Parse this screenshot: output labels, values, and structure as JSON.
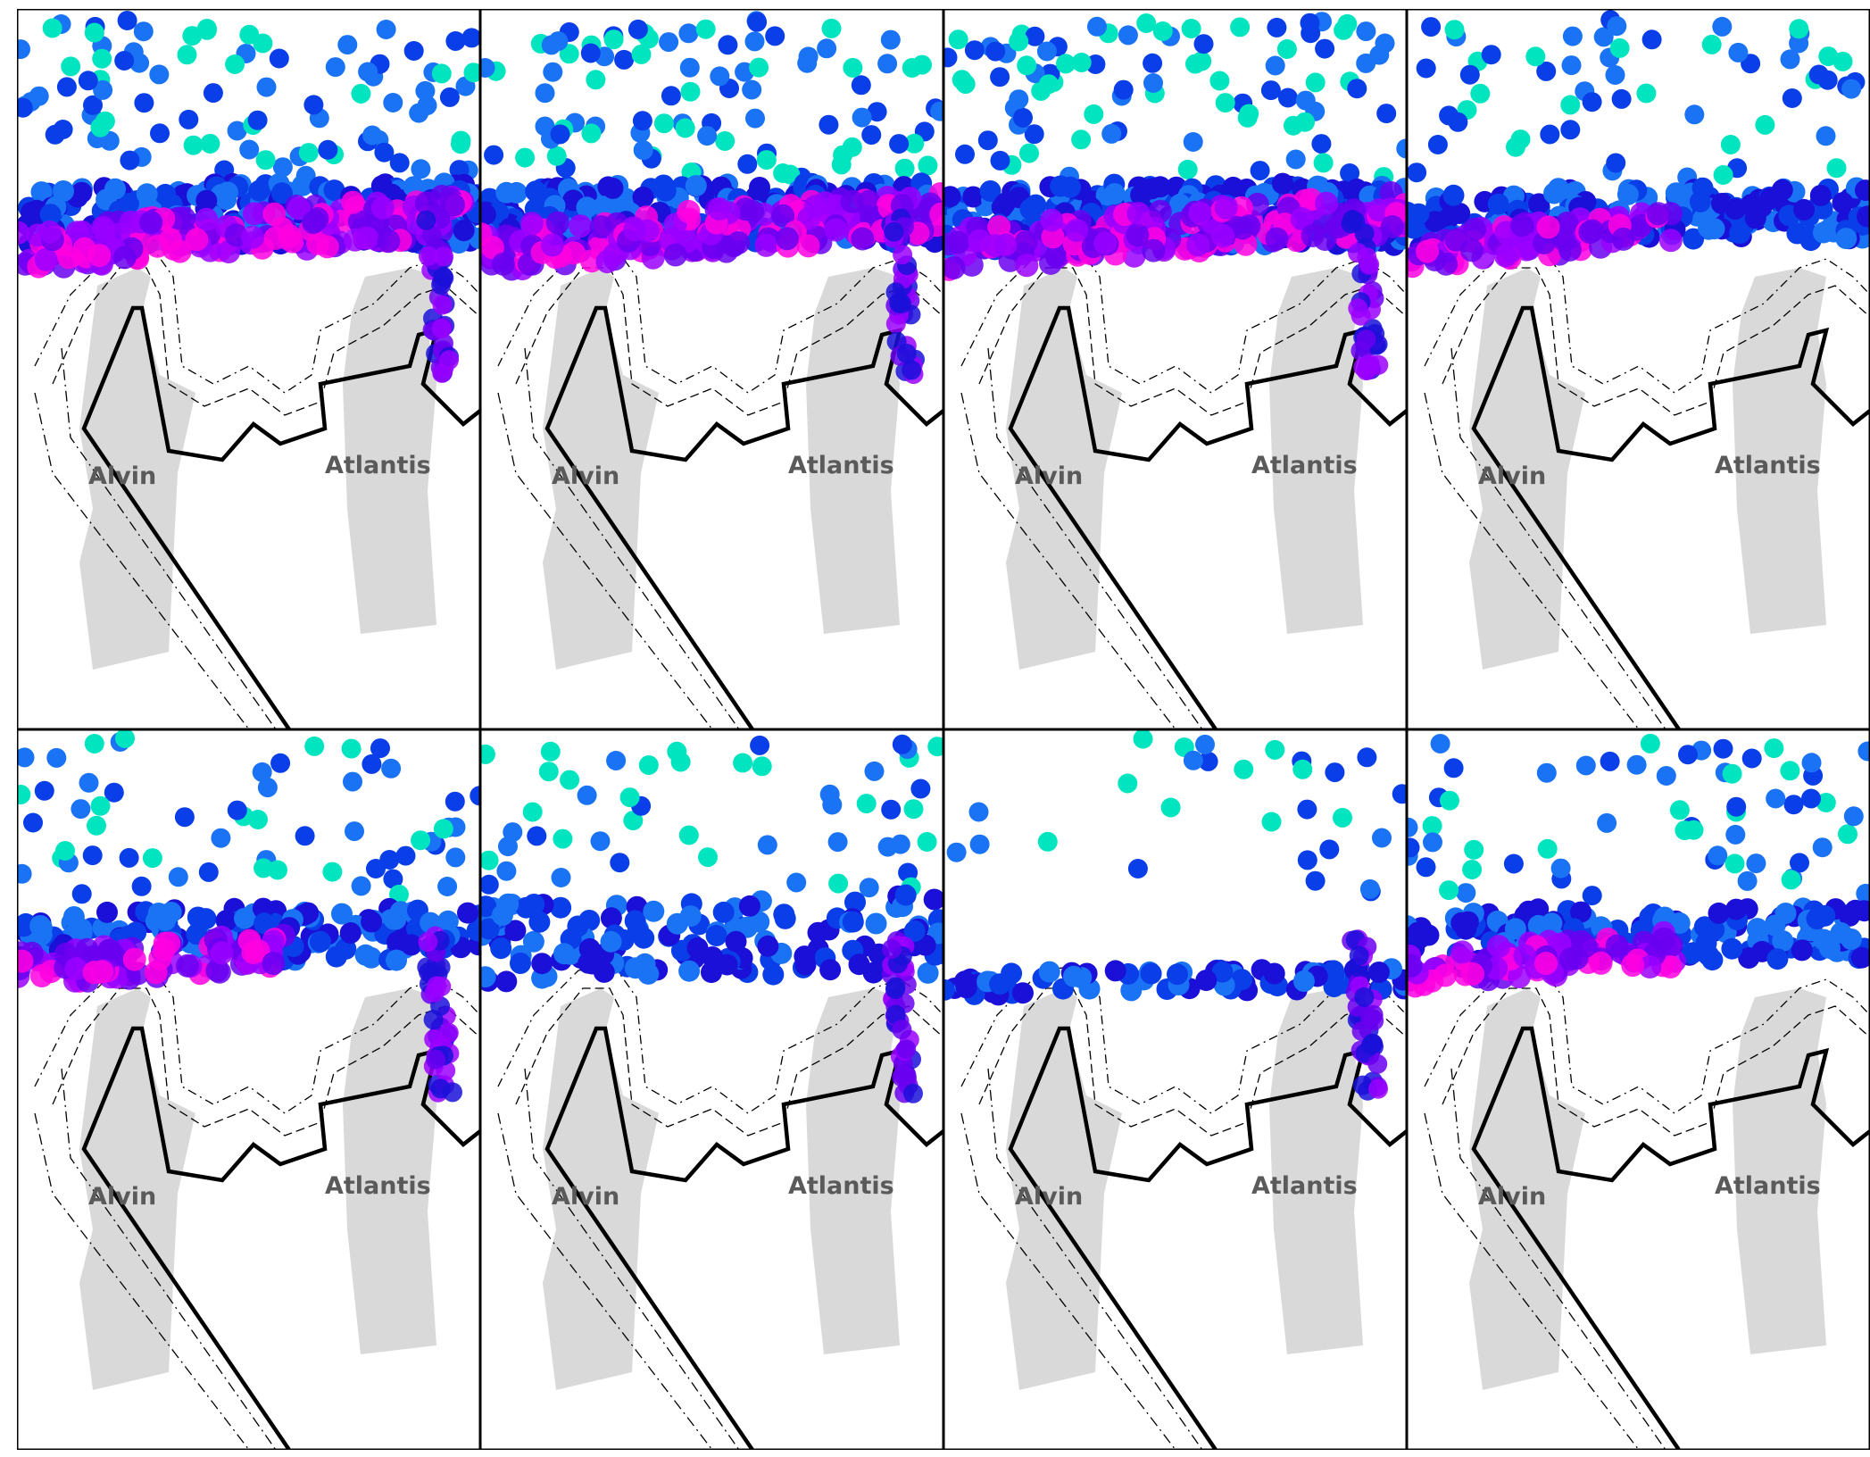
{
  "figure": {
    "layout": {
      "rows": 2,
      "cols": 4
    },
    "labels": {
      "site_a": "Alvin",
      "site_b": "Atlantis"
    },
    "colors": {
      "panel_border": "#000000",
      "landmass": "#d9d9d9",
      "boundary_line": "#000000",
      "contour_line": "#000000",
      "dot_palette": [
        "#00e5c0",
        "#1a73f5",
        "#0a3ee8",
        "#1a10d8",
        "#6a00f0",
        "#9a00ff",
        "#ff00e0"
      ],
      "label_text": "#5a5a5a"
    },
    "panels": [
      {
        "id": "p1",
        "band": "thick",
        "jet": true,
        "tail": "right"
      },
      {
        "id": "p2",
        "band": "thick",
        "jet": true,
        "tail": "right"
      },
      {
        "id": "p3",
        "band": "thick",
        "jet": true,
        "tail": "right"
      },
      {
        "id": "p4",
        "band": "medium",
        "jet": true,
        "tail": "none"
      },
      {
        "id": "p5",
        "band": "medium",
        "jet": true,
        "tail": "right"
      },
      {
        "id": "p6",
        "band": "sparse",
        "jet": false,
        "tail": "right"
      },
      {
        "id": "p7",
        "band": "thin",
        "jet": false,
        "tail": "right"
      },
      {
        "id": "p8",
        "band": "medium",
        "jet": true,
        "tail": "none"
      }
    ]
  }
}
